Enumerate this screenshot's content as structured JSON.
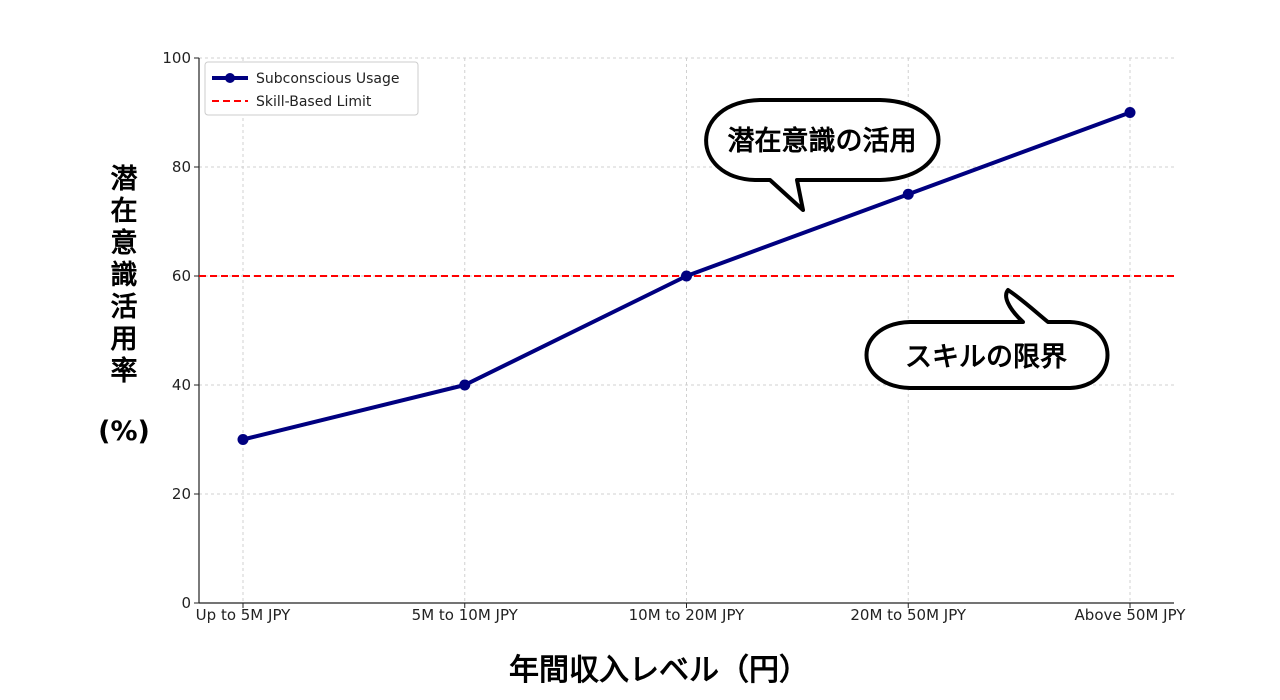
{
  "chart_data": {
    "type": "line",
    "categories": [
      "Up to 5M JPY",
      "5M to 10M JPY",
      "10M to 20M JPY",
      "20M to 50M JPY",
      "Above 50M JPY"
    ],
    "series": [
      {
        "name": "Subconscious Usage",
        "values": [
          30,
          40,
          60,
          75,
          90
        ],
        "color": "#000080",
        "marker": "circle",
        "line_style": "solid"
      }
    ],
    "reference_lines": [
      {
        "name": "Skill-Based Limit",
        "y": 60,
        "color": "#ff0000",
        "line_style": "dashed"
      }
    ],
    "annotations": [
      {
        "text": "潜在意識の活用",
        "target_series": "Subconscious Usage"
      },
      {
        "text": "スキルの限界",
        "target_series": "Skill-Based Limit"
      }
    ],
    "title": "",
    "xlabel": "年間収入レベル（円）",
    "ylabel_chars": [
      "潜",
      "在",
      "意",
      "識",
      "活",
      "用",
      "率"
    ],
    "ylabel_unit": "(%)",
    "ylim": [
      0,
      100
    ],
    "yticks": [
      0,
      20,
      40,
      60,
      80,
      100
    ],
    "grid": true,
    "legend_position": "top-left"
  }
}
